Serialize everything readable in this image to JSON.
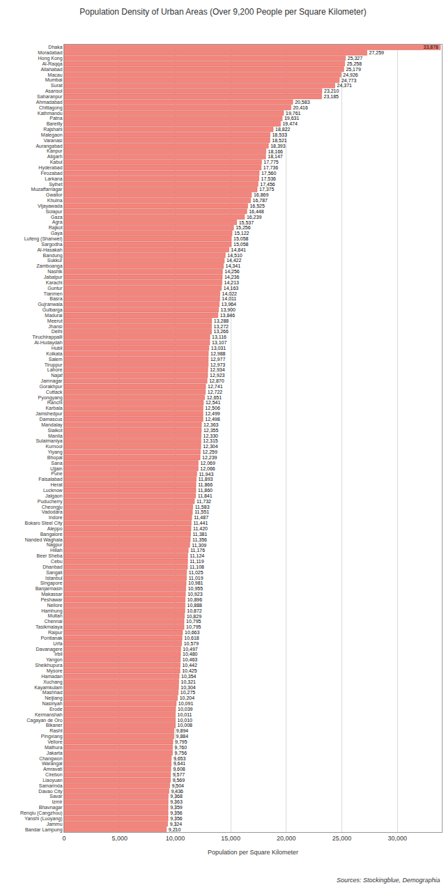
{
  "chart_data": {
    "type": "bar",
    "orientation": "horizontal",
    "title": "Population Density of Urban Areas (Over 9,200 People per Square Kilometer)",
    "x_label": "Population per Square Kilometer",
    "annotation": "Sources: Stockingblue, Demographia",
    "color": "#f4857c",
    "grid": true,
    "data_labels": true,
    "xlim": [
      0,
      34000
    ],
    "xticks": [
      0,
      {
        "value": 5000,
        "label": "5,000"
      },
      {
        "value": 10000,
        "label": "10,000"
      },
      {
        "value": 15000,
        "label": "15,000"
      },
      {
        "value": 20000,
        "label": "20,000"
      },
      {
        "value": 25000,
        "label": "25,000"
      },
      {
        "value": 30000,
        "label": "30,000"
      }
    ],
    "categories": [
      "Dhaka",
      "Moradabad",
      "Hong Kong",
      "Al-Raqqa",
      "Allahabad",
      "Macau",
      "Mumbai",
      "Surat",
      "Asansol",
      "Saharanpur",
      "Ahmadabad",
      "Chittagong",
      "Kathmandu",
      "Patna",
      "Bareilly",
      "Rajshahi",
      "Malegaon",
      "Varanasi",
      "Aurangabad",
      "Kanpur",
      "Aligarh",
      "Kabul",
      "Hyderabad",
      "Firozabad",
      "Larkana",
      "Sylhet",
      "Muzaffarnagar",
      "Gwalior",
      "Khulna",
      "Vijayawada",
      "Solapur",
      "Gaza",
      "Agra",
      "Rajkot",
      "Gaya",
      "Lufeng (Shanwei)",
      "Sargodha",
      "Al-Hasakah",
      "Bandung",
      "Sukkur",
      "Zamboanga",
      "Nashik",
      "Jabalpur",
      "Karachi",
      "Guntur",
      "Tianmen",
      "Basra",
      "Gujranwala",
      "Gulbarga",
      "Madurai",
      "Meerut",
      "Jhansi",
      "Delhi",
      "Tiruchirappalli",
      "Al-Hudaydah",
      "Hubli",
      "Kolkata",
      "Salem",
      "Tiruppur",
      "Lahore",
      "Najaf",
      "Jamnagar",
      "Gorakhpur",
      "Cuttack",
      "Pyongyang",
      "Ranchi",
      "Karbala",
      "Jamshedpur",
      "Damascus",
      "Mandalay",
      "Sialkot",
      "Manila",
      "Sulaimaniya",
      "Kurnool",
      "Yiyang",
      "Bhopal",
      "Sana",
      "Ujjain",
      "Pune",
      "Faisalabad",
      "Herat",
      "Lucknow",
      "Jalgaon",
      "Puducherry",
      "Cheongju",
      "Vadodara",
      "Indore",
      "Bokaro Steel City",
      "Aleppo",
      "Bangalore",
      "Nanded Waghala",
      "Nagpur",
      "Hillah",
      "Beer Sheba",
      "Cebu",
      "Dhanbad",
      "Sangali",
      "Istanbul",
      "Singapore",
      "Banjarmasin",
      "Makassar",
      "Peshawar",
      "Nellore",
      "Hamhung",
      "Multan",
      "Chennai",
      "Tasikmalaya",
      "Raipur",
      "Pontianak",
      "Urfa",
      "Davanagere",
      "Irbil",
      "Yangon",
      "Sheikhupura",
      "Mysore",
      "Hamadan",
      "Xuchang",
      "Kayamkulam",
      "Mashhad",
      "Neijiang",
      "Nasiriyah",
      "Erode",
      "Kermanshah",
      "Cagayan de Oro",
      "Bikaner",
      "Rasht",
      "Pingxiang",
      "Vellore",
      "Mathura",
      "Jakarta",
      "Changwon",
      "Warangal",
      "Amravati",
      "Cirebon",
      "Liaoyuan",
      "Samarinda",
      "Davao City",
      "Savar",
      "Izmir",
      "Bhavnagar",
      "Renqiu (Cangzhou)",
      "Yanshi (Luoyang)",
      "Jammu",
      "Bandar Lampung"
    ],
    "values": [
      33878,
      27259,
      25327,
      25258,
      25179,
      24926,
      24773,
      24371,
      23210,
      23185,
      20583,
      20416,
      19761,
      19631,
      19474,
      18822,
      18533,
      18521,
      18393,
      18166,
      18147,
      17775,
      17736,
      17560,
      17536,
      17456,
      17375,
      16869,
      16787,
      16525,
      16448,
      16239,
      15537,
      15256,
      15122,
      15058,
      15058,
      14841,
      14510,
      14422,
      14341,
      14256,
      14236,
      14213,
      14163,
      14022,
      14011,
      13964,
      13900,
      13846,
      13288,
      13272,
      13266,
      13116,
      13107,
      13031,
      12988,
      12977,
      12973,
      12934,
      12923,
      12870,
      12741,
      12722,
      12651,
      12541,
      12506,
      12499,
      12498,
      12363,
      12355,
      12330,
      12315,
      12304,
      12259,
      12239,
      12069,
      12066,
      11943,
      11893,
      11866,
      11860,
      11841,
      11732,
      11583,
      11551,
      11487,
      11441,
      11420,
      11381,
      11356,
      11309,
      11176,
      11124,
      11119,
      11108,
      11025,
      11019,
      10981,
      10955,
      10923,
      10896,
      10888,
      10872,
      10829,
      10795,
      10795,
      10663,
      10618,
      10579,
      10497,
      10480,
      10463,
      10442,
      10425,
      10354,
      10321,
      10304,
      10275,
      10204,
      10091,
      10039,
      10011,
      10010,
      10008,
      9894,
      9884,
      9795,
      9760,
      9756,
      9653,
      9641,
      9608,
      9577,
      9569,
      9504,
      9436,
      9368,
      9363,
      9359,
      9356,
      9356,
      9324,
      9210
    ],
    "value_labels": [
      "33,878",
      "27,259",
      "25,327",
      "25,258",
      "25,179",
      "24,926",
      "24,773",
      "24,371",
      "23,210",
      "23,185",
      "20,583",
      "20,416",
      "19,761",
      "19,631",
      "19,474",
      "18,822",
      "18,533",
      "18,521",
      "18,393",
      "18,166",
      "18,147",
      "17,775",
      "17,736",
      "17,560",
      "17,536",
      "17,456",
      "17,375",
      "16,869",
      "16,787",
      "16,525",
      "16,448",
      "16,239",
      "15,537",
      "15,256",
      "15,122",
      "15,058",
      "15,058",
      "14,841",
      "14,510",
      "14,422",
      "14,341",
      "14,256",
      "14,236",
      "14,213",
      "14,163",
      "14,022",
      "14,011",
      "13,964",
      "13,900",
      "13,846",
      "13,288",
      "13,272",
      "13,266",
      "13,116",
      "13,107",
      "13,031",
      "12,988",
      "12,977",
      "12,973",
      "12,934",
      "12,923",
      "12,870",
      "12,741",
      "12,722",
      "12,651",
      "12,541",
      "12,506",
      "12,499",
      "12,498",
      "12,363",
      "12,355",
      "12,330",
      "12,315",
      "12,304",
      "12,259",
      "12,239",
      "12,069",
      "12,066",
      "11,943",
      "11,893",
      "11,866",
      "11,860",
      "11,841",
      "11,732",
      "11,583",
      "11,551",
      "11,487",
      "11,441",
      "11,420",
      "11,381",
      "11,356",
      "11,309",
      "11,176",
      "11,124",
      "11,119",
      "11,108",
      "11,025",
      "11,019",
      "10,981",
      "10,955",
      "10,923",
      "10,896",
      "10,888",
      "10,872",
      "10,829",
      "10,795",
      "10,795",
      "10,663",
      "10,618",
      "10,579",
      "10,497",
      "10,480",
      "10,463",
      "10,442",
      "10,425",
      "10,354",
      "10,321",
      "10,304",
      "10,275",
      "10,204",
      "10,091",
      "10,039",
      "10,011",
      "10,010",
      "10,008",
      "9,894",
      "9,884",
      "9,795",
      "9,760",
      "9,756",
      "9,653",
      "9,641",
      "9,608",
      "9,577",
      "9,569",
      "9,504",
      "9,436",
      "9,368",
      "9,363",
      "9,359",
      "9,356",
      "9,356",
      "9,324",
      "9,210"
    ]
  }
}
